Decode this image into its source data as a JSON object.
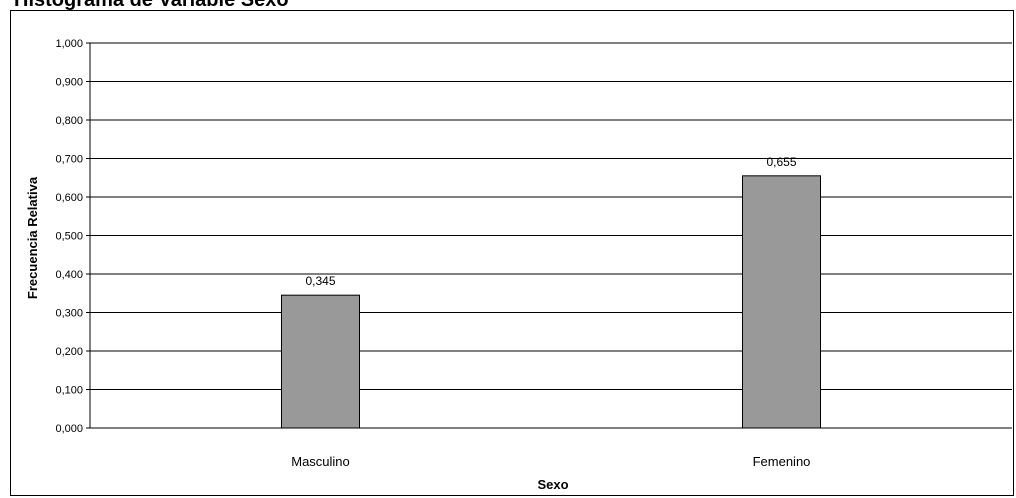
{
  "chart_data": {
    "type": "bar",
    "title": "Histograma de Variable Sexo",
    "xlabel": "Sexo",
    "ylabel": "Frecuencia Relativa",
    "categories": [
      "Masculino",
      "Femenino"
    ],
    "values": [
      0.345,
      0.655
    ],
    "data_labels": [
      "0,345",
      "0,655"
    ],
    "yticks": [
      "0,000",
      "0,100",
      "0,200",
      "0,300",
      "0,400",
      "0,500",
      "0,600",
      "0,700",
      "0,800",
      "0,900",
      "1,000"
    ],
    "ylim": [
      0,
      1
    ],
    "grid": true,
    "legend": "none",
    "bar_color": "#999999",
    "bar_border_color": "#000000"
  }
}
